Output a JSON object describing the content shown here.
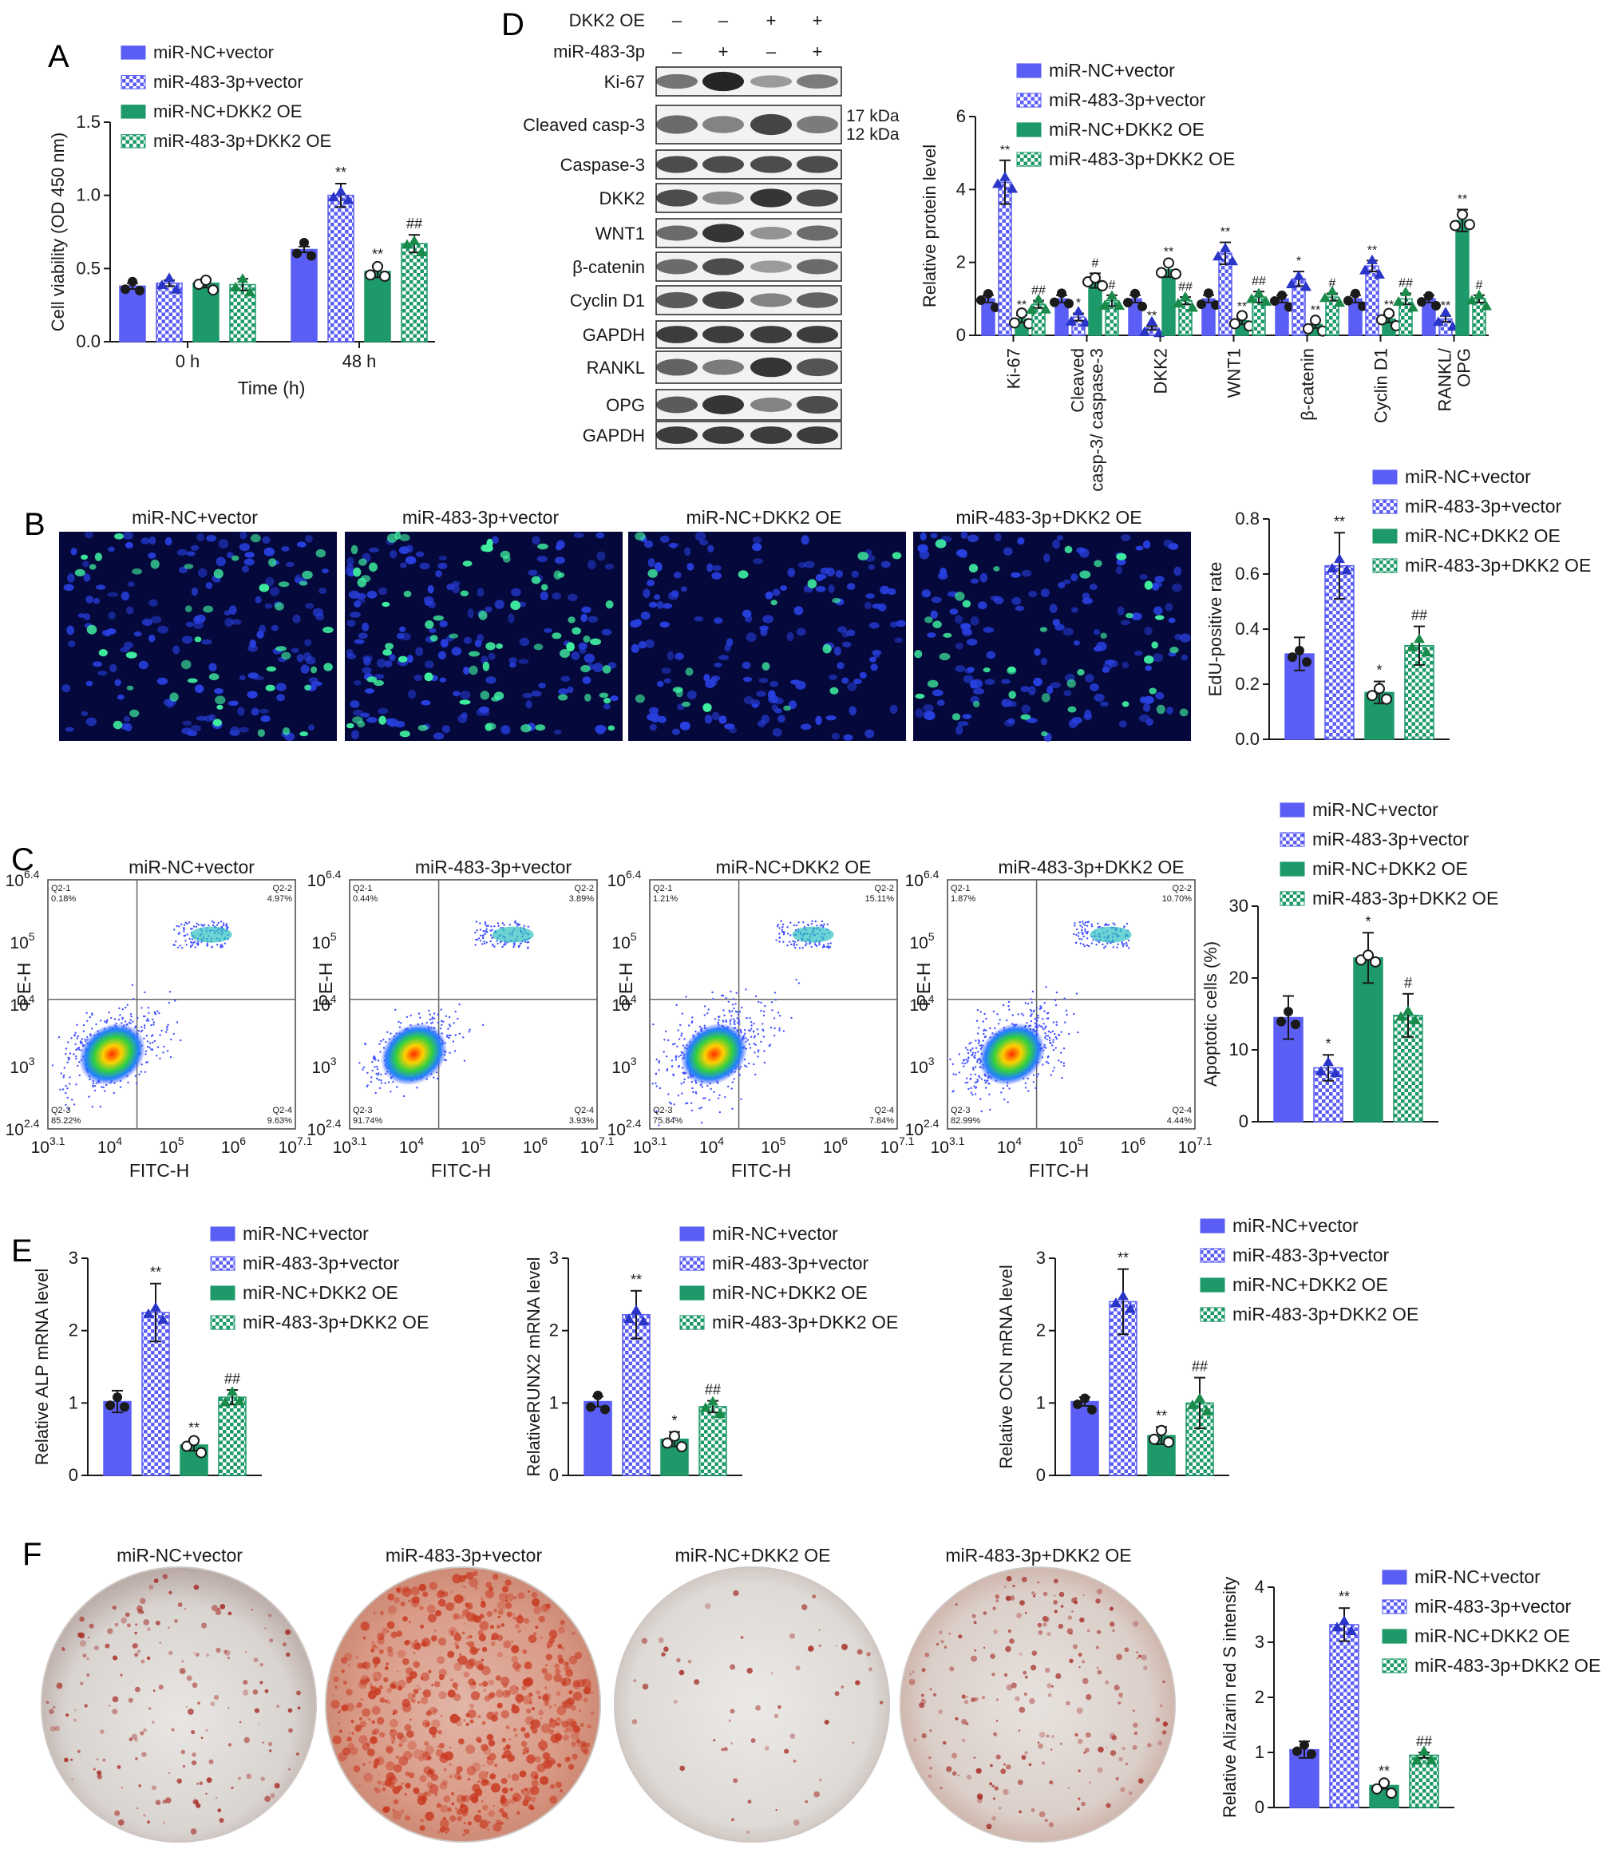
{
  "groups": [
    "miR-NC+vector",
    "miR-483-3p+vector",
    "miR-NC+DKK2 OE",
    "miR-483-3p+DKK2 OE"
  ],
  "colors": {
    "blue": "#5b5ef4",
    "green": "#1e9a6a",
    "dark": "#1a1a1a",
    "tri": "#2a35c8",
    "tri_green": "#1a8a4a"
  },
  "panel_letters": {
    "A": "A",
    "B": "B",
    "C": "C",
    "D": "D",
    "E": "E",
    "F": "F"
  },
  "panel_A": {
    "chart_data": {
      "type": "bar",
      "categories": [
        "0 h",
        "48 h"
      ],
      "series": [
        {
          "name": "miR-NC+vector",
          "values": [
            0.38,
            0.63
          ],
          "err": [
            0.02,
            0.02
          ],
          "sig": [
            "",
            ""
          ]
        },
        {
          "name": "miR-483-3p+vector",
          "values": [
            0.4,
            1.0
          ],
          "err": [
            0.02,
            0.08
          ],
          "sig": [
            "",
            "**"
          ]
        },
        {
          "name": "miR-NC+DKK2 OE",
          "values": [
            0.4,
            0.48
          ],
          "err": [
            0.03,
            0.04
          ],
          "sig": [
            "",
            "**"
          ]
        },
        {
          "name": "miR-483-3p+DKK2 OE",
          "values": [
            0.39,
            0.67
          ],
          "err": [
            0.04,
            0.06
          ],
          "sig": [
            "",
            "##"
          ]
        }
      ],
      "xlabel": "Time (h)",
      "ylabel": "Cell viability (OD 450 nm)",
      "ylim": [
        0,
        1.5
      ],
      "yticks": [
        "0.0",
        "0.5",
        "1.0",
        "1.5"
      ]
    }
  },
  "panel_D": {
    "blot_header": {
      "row1_label": "DKK2 OE",
      "row1": [
        "–",
        "–",
        "+",
        "+"
      ],
      "row2_label": "miR-483-3p",
      "row2": [
        "–",
        "+",
        "–",
        "+"
      ]
    },
    "blot_labels": [
      "Ki-67",
      "Cleaved casp-3",
      "Caspase-3",
      "DKK2",
      "WNT1",
      "β-catenin",
      "Cyclin D1",
      "GAPDH",
      "RANKL",
      "OPG",
      "GAPDH"
    ],
    "kda": [
      "17 kDa",
      "12 kDa"
    ],
    "chart_data": {
      "type": "bar",
      "categories": [
        "Ki-67",
        "Cleaved casp-3/ caspase-3",
        "DKK2",
        "WNT1",
        "β-catenin",
        "Cyclin D1",
        "RANKL/ OPG"
      ],
      "series": [
        {
          "name": "miR-NC+vector",
          "values": [
            1.0,
            1.0,
            1.0,
            1.0,
            1.0,
            1.0,
            1.0
          ],
          "err": [
            0.1,
            0.1,
            0.1,
            0.1,
            0.1,
            0.1,
            0.1
          ],
          "sig": [
            "",
            "",
            "",
            "",
            "",
            "",
            ""
          ]
        },
        {
          "name": "miR-483-3p+vector",
          "values": [
            4.2,
            0.5,
            0.2,
            2.25,
            1.55,
            1.9,
            0.45
          ],
          "err": [
            0.6,
            0.1,
            0.05,
            0.3,
            0.2,
            0.15,
            0.08
          ],
          "sig": [
            "**",
            "*",
            "**",
            "**",
            "*",
            "**",
            "**"
          ]
        },
        {
          "name": "miR-NC+DKK2 OE",
          "values": [
            0.45,
            1.5,
            1.8,
            0.4,
            0.3,
            0.45,
            3.15
          ],
          "err": [
            0.1,
            0.2,
            0.2,
            0.1,
            0.1,
            0.1,
            0.3
          ],
          "sig": [
            "**",
            "#",
            "**",
            "**",
            "**",
            "**",
            "**"
          ]
        },
        {
          "name": "miR-483-3p+DKK2 OE",
          "values": [
            0.85,
            0.95,
            0.95,
            1.05,
            1.05,
            1.0,
            1.0
          ],
          "err": [
            0.1,
            0.15,
            0.1,
            0.15,
            0.1,
            0.15,
            0.1
          ],
          "sig": [
            "##",
            "#",
            "##",
            "##",
            "#",
            "##",
            "#"
          ]
        }
      ],
      "ylabel": "Relative protein level",
      "ylim": [
        0,
        6
      ],
      "yticks": [
        "0",
        "2",
        "4",
        "6"
      ]
    }
  },
  "panel_B": {
    "image_titles": [
      "miR-NC+vector",
      "miR-483-3p+vector",
      "miR-NC+DKK2 OE",
      "miR-483-3p+DKK2 OE"
    ],
    "chart_data": {
      "type": "bar",
      "categories": [
        "miR-NC+vector",
        "miR-483-3p+vector",
        "miR-NC+DKK2 OE",
        "miR-483-3p+DKK2 OE"
      ],
      "values": [
        0.31,
        0.63,
        0.17,
        0.34
      ],
      "err": [
        0.06,
        0.12,
        0.04,
        0.07
      ],
      "sig": [
        "",
        "**",
        "*",
        "##"
      ],
      "ylabel": "EdU-positive rate",
      "ylim": [
        0,
        0.8
      ],
      "yticks": [
        "0.0",
        "0.2",
        "0.4",
        "0.6",
        "0.8"
      ]
    }
  },
  "panel_C": {
    "plot_titles": [
      "miR-NC+vector",
      "miR-483-3p+vector",
      "miR-NC+DKK2 OE",
      "miR-483-3p+DKK2 OE"
    ],
    "quadrants": [
      {
        "q1": "Q2-1",
        "q1v": "0.18%",
        "q2": "Q2-2",
        "q2v": "4.97%",
        "q3": "Q2-3",
        "q3v": "85.22%",
        "q4": "Q2-4",
        "q4v": "9.63%"
      },
      {
        "q1": "Q2-1",
        "q1v": "0.44%",
        "q2": "Q2-2",
        "q2v": "3.89%",
        "q3": "Q2-3",
        "q3v": "91.74%",
        "q4": "Q2-4",
        "q4v": "3.93%"
      },
      {
        "q1": "Q2-1",
        "q1v": "1.21%",
        "q2": "Q2-2",
        "q2v": "15.11%",
        "q3": "Q2-3",
        "q3v": "75.84%",
        "q4": "Q2-4",
        "q4v": "7.84%"
      },
      {
        "q1": "Q2-1",
        "q1v": "1.87%",
        "q2": "Q2-2",
        "q2v": "10.70%",
        "q3": "Q2-3",
        "q3v": "82.99%",
        "q4": "Q2-4",
        "q4v": "4.44%"
      }
    ],
    "flow_xlabel": "FITC-H",
    "flow_ylabel": "PE-H",
    "flow_xticks": [
      {
        "b": "10",
        "e": "3.1"
      },
      {
        "b": "10",
        "e": "4"
      },
      {
        "b": "10",
        "e": "5"
      },
      {
        "b": "10",
        "e": "6"
      },
      {
        "b": "10",
        "e": "7.1"
      }
    ],
    "flow_yticks": [
      {
        "b": "10",
        "e": "2.4"
      },
      {
        "b": "10",
        "e": "3"
      },
      {
        "b": "10",
        "e": "4"
      },
      {
        "b": "10",
        "e": "5"
      },
      {
        "b": "10",
        "e": "6.4"
      }
    ],
    "chart_data": {
      "type": "bar",
      "categories": [
        "miR-NC+vector",
        "miR-483-3p+vector",
        "miR-NC+DKK2 OE",
        "miR-483-3p+DKK2 OE"
      ],
      "values": [
        14.5,
        7.5,
        22.8,
        14.8
      ],
      "err": [
        3.0,
        1.8,
        3.5,
        3.0
      ],
      "sig": [
        "",
        "*",
        "*",
        "#"
      ],
      "ylabel": "Apoptotic cells (%)",
      "ylim": [
        0,
        30
      ],
      "yticks": [
        "0",
        "10",
        "20",
        "30"
      ]
    }
  },
  "panel_E": {
    "charts": [
      {
        "type": "bar",
        "categories": [
          "miR-NC+vector",
          "miR-483-3p+vector",
          "miR-NC+DKK2 OE",
          "miR-483-3p+DKK2 OE"
        ],
        "values": [
          1.02,
          2.25,
          0.42,
          1.08
        ],
        "err": [
          0.15,
          0.4,
          0.08,
          0.1
        ],
        "sig": [
          "",
          "**",
          "**",
          "##"
        ],
        "ylabel": "Relative ALP mRNA level",
        "ylim": [
          0,
          3
        ],
        "yticks": [
          "0",
          "1",
          "2",
          "3"
        ]
      },
      {
        "type": "bar",
        "categories": [
          "miR-NC+vector",
          "miR-483-3p+vector",
          "miR-NC+DKK2 OE",
          "miR-483-3p+DKK2 OE"
        ],
        "values": [
          1.02,
          2.22,
          0.5,
          0.95
        ],
        "err": [
          0.07,
          0.33,
          0.1,
          0.08
        ],
        "sig": [
          "",
          "**",
          "*",
          "##"
        ],
        "ylabel": "RelativeRUNX2 mRNA level",
        "ylim": [
          0,
          3
        ],
        "yticks": [
          "0",
          "1",
          "2",
          "3"
        ]
      },
      {
        "type": "bar",
        "categories": [
          "miR-NC+vector",
          "miR-483-3p+vector",
          "miR-NC+DKK2 OE",
          "miR-483-3p+DKK2 OE"
        ],
        "values": [
          1.02,
          2.4,
          0.55,
          1.0
        ],
        "err": [
          0.06,
          0.45,
          0.12,
          0.35
        ],
        "sig": [
          "",
          "**",
          "**",
          "##"
        ],
        "ylabel": "Relative OCN mRNA level",
        "ylim": [
          0,
          3
        ],
        "yticks": [
          "0",
          "1",
          "2",
          "3"
        ]
      }
    ]
  },
  "panel_F": {
    "image_titles": [
      "miR-NC+vector",
      "miR-483-3p+vector",
      "miR-NC+DKK2 OE",
      "miR-483-3p+DKK2 OE"
    ],
    "chart_data": {
      "type": "bar",
      "categories": [
        "miR-NC+vector",
        "miR-483-3p+vector",
        "miR-NC+DKK2 OE",
        "miR-483-3p+DKK2 OE"
      ],
      "values": [
        1.05,
        3.32,
        0.4,
        0.95
      ],
      "err": [
        0.15,
        0.3,
        0.06,
        0.05
      ],
      "sig": [
        "",
        "**",
        "**",
        "##"
      ],
      "ylabel": "Relative Alizarin red S intensity",
      "ylim": [
        0,
        4
      ],
      "yticks": [
        "0",
        "1",
        "2",
        "3",
        "4"
      ]
    }
  }
}
